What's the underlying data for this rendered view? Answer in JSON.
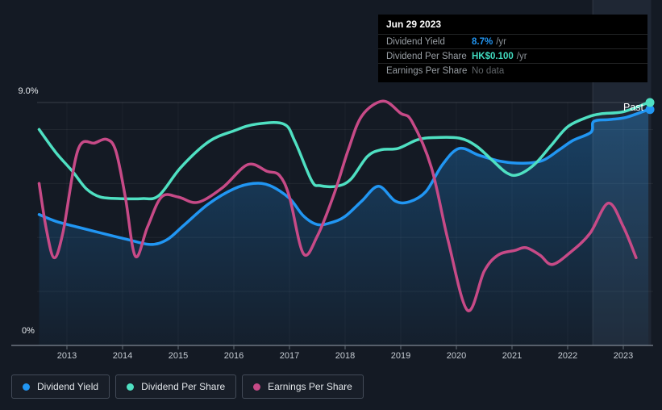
{
  "past_label": "Past",
  "tooltip": {
    "date": "Jun 29 2023",
    "rows": [
      {
        "label": "Dividend Yield",
        "value": "8.7%",
        "suffix": "/yr",
        "color": "#2196f3",
        "muted": false
      },
      {
        "label": "Dividend Per Share",
        "value": "HK$0.100",
        "suffix": "/yr",
        "color": "#41dcc0",
        "muted": false
      },
      {
        "label": "Earnings Per Share",
        "value": "No data",
        "suffix": "",
        "color": "#5f6468",
        "muted": true
      }
    ]
  },
  "legend": {
    "items": [
      {
        "label": "Dividend Yield",
        "color": "#2196f3"
      },
      {
        "label": "Dividend Per Share",
        "color": "#4fe0c2"
      },
      {
        "label": "Earnings Per Share",
        "color": "#c74a87"
      }
    ]
  },
  "chart_data": {
    "type": "line",
    "title": "Dividend Yield / Dividend Per Share / Earnings Per Share history",
    "x_ticks": [
      2013,
      2014,
      2015,
      2016,
      2017,
      2018,
      2019,
      2020,
      2021,
      2022,
      2023
    ],
    "x_range": [
      2012.5,
      2023.5
    ],
    "y_axis": {
      "top_label": "9.0%",
      "bottom_label": "0%",
      "min": 0,
      "max": 9,
      "unit": "%",
      "gridlines": [
        2,
        4,
        6,
        8
      ],
      "top_line": 9,
      "grid_on": true
    },
    "highlight_band": {
      "from": 2022.45,
      "to": 2023.5
    },
    "legend_position": "bottom-left",
    "series": [
      {
        "name": "Dividend Yield",
        "color": "#2196f3",
        "area": true,
        "end_marker": true,
        "unit": "%",
        "points": [
          [
            2012.5,
            4.85
          ],
          [
            2012.8,
            4.6
          ],
          [
            2013.2,
            4.38
          ],
          [
            2013.7,
            4.12
          ],
          [
            2014.1,
            3.92
          ],
          [
            2014.5,
            3.74
          ],
          [
            2014.8,
            3.92
          ],
          [
            2015.1,
            4.45
          ],
          [
            2015.55,
            5.25
          ],
          [
            2016.0,
            5.8
          ],
          [
            2016.35,
            6.0
          ],
          [
            2016.65,
            5.92
          ],
          [
            2017.0,
            5.45
          ],
          [
            2017.25,
            4.8
          ],
          [
            2017.5,
            4.48
          ],
          [
            2017.75,
            4.55
          ],
          [
            2018.0,
            4.78
          ],
          [
            2018.3,
            5.35
          ],
          [
            2018.6,
            5.9
          ],
          [
            2018.9,
            5.35
          ],
          [
            2019.15,
            5.32
          ],
          [
            2019.45,
            5.7
          ],
          [
            2019.75,
            6.7
          ],
          [
            2020.05,
            7.3
          ],
          [
            2020.4,
            7.05
          ],
          [
            2020.8,
            6.82
          ],
          [
            2021.2,
            6.75
          ],
          [
            2021.55,
            6.85
          ],
          [
            2021.85,
            7.25
          ],
          [
            2022.1,
            7.6
          ],
          [
            2022.42,
            7.9
          ],
          [
            2022.47,
            8.3
          ],
          [
            2022.75,
            8.37
          ],
          [
            2023.05,
            8.45
          ],
          [
            2023.45,
            8.74
          ]
        ]
      },
      {
        "name": "Dividend Per Share",
        "color": "#4fe0c2",
        "area": false,
        "end_marker": true,
        "unit": "HK$",
        "points": [
          [
            2012.5,
            8.0
          ],
          [
            2012.8,
            7.15
          ],
          [
            2013.1,
            6.45
          ],
          [
            2013.35,
            5.8
          ],
          [
            2013.6,
            5.5
          ],
          [
            2013.95,
            5.44
          ],
          [
            2014.35,
            5.44
          ],
          [
            2014.65,
            5.55
          ],
          [
            2015.05,
            6.6
          ],
          [
            2015.55,
            7.55
          ],
          [
            2016.0,
            7.95
          ],
          [
            2016.4,
            8.2
          ],
          [
            2016.9,
            8.2
          ],
          [
            2017.1,
            7.55
          ],
          [
            2017.4,
            6.1
          ],
          [
            2017.55,
            5.92
          ],
          [
            2017.85,
            5.9
          ],
          [
            2018.1,
            6.15
          ],
          [
            2018.4,
            7.0
          ],
          [
            2018.65,
            7.25
          ],
          [
            2018.95,
            7.3
          ],
          [
            2019.3,
            7.62
          ],
          [
            2019.6,
            7.7
          ],
          [
            2020.05,
            7.68
          ],
          [
            2020.35,
            7.4
          ],
          [
            2020.65,
            6.85
          ],
          [
            2020.9,
            6.4
          ],
          [
            2021.1,
            6.32
          ],
          [
            2021.4,
            6.7
          ],
          [
            2021.7,
            7.4
          ],
          [
            2022.0,
            8.1
          ],
          [
            2022.35,
            8.45
          ],
          [
            2022.6,
            8.58
          ],
          [
            2023.0,
            8.66
          ],
          [
            2023.45,
            9.0
          ]
        ]
      },
      {
        "name": "Earnings Per Share",
        "color": "#c74a87",
        "area": false,
        "end_marker": false,
        "unit": "%",
        "points": [
          [
            2012.5,
            6.0
          ],
          [
            2012.63,
            4.3
          ],
          [
            2012.77,
            3.25
          ],
          [
            2012.93,
            4.2
          ],
          [
            2013.2,
            7.25
          ],
          [
            2013.5,
            7.5
          ],
          [
            2013.72,
            7.63
          ],
          [
            2013.88,
            7.2
          ],
          [
            2014.05,
            5.5
          ],
          [
            2014.23,
            3.3
          ],
          [
            2014.45,
            4.4
          ],
          [
            2014.7,
            5.5
          ],
          [
            2015.0,
            5.5
          ],
          [
            2015.35,
            5.3
          ],
          [
            2015.8,
            5.85
          ],
          [
            2016.25,
            6.7
          ],
          [
            2016.6,
            6.45
          ],
          [
            2016.82,
            6.3
          ],
          [
            2017.0,
            5.5
          ],
          [
            2017.25,
            3.4
          ],
          [
            2017.5,
            4.05
          ],
          [
            2017.8,
            5.6
          ],
          [
            2018.05,
            7.2
          ],
          [
            2018.3,
            8.5
          ],
          [
            2018.68,
            9.05
          ],
          [
            2019.0,
            8.6
          ],
          [
            2019.2,
            8.3
          ],
          [
            2019.55,
            6.6
          ],
          [
            2019.85,
            3.9
          ],
          [
            2020.2,
            1.3
          ],
          [
            2020.5,
            2.75
          ],
          [
            2020.75,
            3.35
          ],
          [
            2021.05,
            3.52
          ],
          [
            2021.25,
            3.62
          ],
          [
            2021.5,
            3.35
          ],
          [
            2021.72,
            3.0
          ],
          [
            2022.05,
            3.45
          ],
          [
            2022.4,
            4.15
          ],
          [
            2022.73,
            5.27
          ],
          [
            2023.0,
            4.4
          ],
          [
            2023.23,
            3.25
          ]
        ]
      }
    ]
  }
}
